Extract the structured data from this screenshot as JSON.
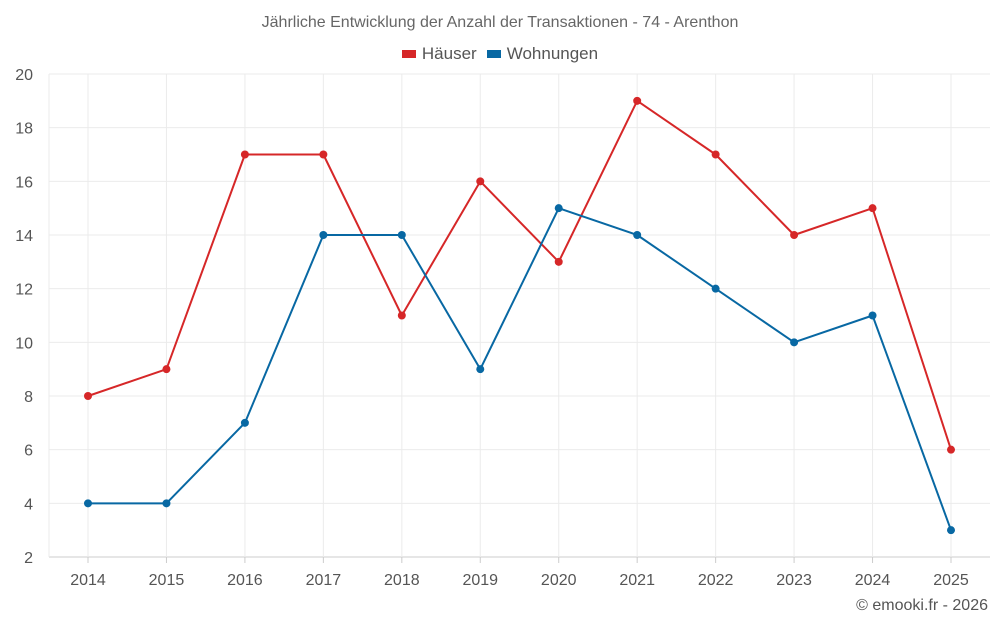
{
  "chart_data": {
    "type": "line",
    "title": "Jährliche Entwicklung der Anzahl der Transaktionen - 74 - Arenthon",
    "categories": [
      "2014",
      "2015",
      "2016",
      "2017",
      "2018",
      "2019",
      "2020",
      "2021",
      "2022",
      "2023",
      "2024",
      "2025"
    ],
    "series": [
      {
        "name": "Häuser",
        "color": "#d62728",
        "values": [
          8,
          9,
          17,
          17,
          11,
          16,
          13,
          19,
          17,
          14,
          15,
          6
        ]
      },
      {
        "name": "Wohnungen",
        "color": "#0868a3",
        "values": [
          4,
          4,
          7,
          14,
          14,
          9,
          15,
          14,
          12,
          10,
          11,
          3
        ]
      }
    ],
    "ylim": [
      2,
      20
    ],
    "yticks": [
      2,
      4,
      6,
      8,
      10,
      12,
      14,
      16,
      18,
      20
    ],
    "xlabel": "",
    "ylabel": "",
    "grid": true,
    "legend": "top-center"
  },
  "credit": "© emooki.fr - 2026"
}
